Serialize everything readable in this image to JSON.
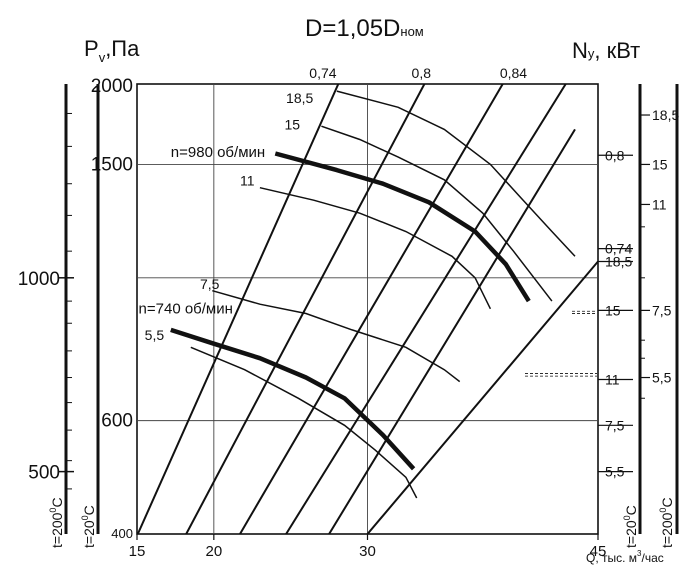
{
  "chart_data": {
    "type": "line",
    "title": {
      "main": "D=1,05D",
      "sub": "ном"
    },
    "ylabel": {
      "main": "P",
      "sub": "v",
      "rest": ",Па"
    },
    "y2label": {
      "main": "N",
      "sub": "y",
      "rest": ",  кВт"
    },
    "xlabel": {
      "main": "Q, тыс. м",
      "sup": "3",
      "rest": "/час"
    },
    "xlim": [
      15,
      45
    ],
    "ylim": [
      400,
      2000
    ],
    "y_scale": "log",
    "x_ticks": [
      "15",
      "20",
      "30",
      "45"
    ],
    "y_ticks": [
      {
        "value": 2000,
        "label": "2000"
      },
      {
        "value": 1500,
        "label": "1500"
      },
      {
        "value": 600,
        "label": "600"
      },
      {
        "value": 400,
        "label": "400"
      }
    ],
    "y_gridlines": [
      1500,
      1000,
      600
    ],
    "x_gridlines": [
      20,
      30
    ],
    "left_outer_scale": {
      "ticks": [
        {
          "value": 1000,
          "label": "1000"
        },
        {
          "value": 500,
          "label": "500"
        }
      ],
      "temperature_label": {
        "main": "t=200",
        "sup": "0",
        "rest": "C"
      }
    },
    "left_inner_scale": {
      "temperature_label": {
        "main": "t=20",
        "sup": "0",
        "rest": "C"
      }
    },
    "right_inner_scale": {
      "ticks": [
        {
          "value": 1550,
          "label": "0,8"
        },
        {
          "value": 1110,
          "label": "0,74"
        },
        {
          "value": 1060,
          "label": "18,5"
        },
        {
          "value": 890,
          "label": "15"
        },
        {
          "value": 695,
          "label": "11"
        },
        {
          "value": 590,
          "label": "7,5"
        },
        {
          "value": 500,
          "label": "5,5"
        }
      ],
      "temperature_label": {
        "main": "t=20",
        "sup": "0",
        "rest": "C"
      }
    },
    "right_outer_scale": {
      "ticks": [
        {
          "value": 1790,
          "label": "18,5"
        },
        {
          "value": 1500,
          "label": "15"
        },
        {
          "value": 1300,
          "label": "11"
        },
        {
          "value": 890,
          "label": "7,5"
        },
        {
          "value": 700,
          "label": "5,5"
        }
      ],
      "temperature_label": {
        "main": "t=200",
        "sup": "0",
        "rest": "C"
      }
    },
    "efficiency_labels": [
      {
        "label": "0,74",
        "x": 27.1
      },
      {
        "label": "0,8",
        "x": 33.5
      },
      {
        "label": "0,84",
        "x": 39.5
      }
    ],
    "series": [
      {
        "name": "n=980 об/мин",
        "label_x": 17.2,
        "label_y": 1540,
        "width": "bold",
        "points": [
          [
            24.0,
            1560
          ],
          [
            28.0,
            1470
          ],
          [
            31.0,
            1400
          ],
          [
            34.0,
            1310
          ],
          [
            37.0,
            1180
          ],
          [
            39.0,
            1050
          ],
          [
            40.5,
            920
          ]
        ]
      },
      {
        "name": "n=740 об/мин",
        "label_x": 15.1,
        "label_y": 880,
        "width": "bold",
        "points": [
          [
            17.2,
            830
          ],
          [
            20.0,
            790
          ],
          [
            23.0,
            750
          ],
          [
            26.0,
            700
          ],
          [
            28.5,
            650
          ],
          [
            31.0,
            570
          ],
          [
            33.0,
            505
          ]
        ]
      }
    ],
    "guide_lines": [
      {
        "points": [
          [
            15.05,
            400
          ],
          [
            28.1,
            2000
          ]
        ]
      },
      {
        "points": [
          [
            18.2,
            400
          ],
          [
            33.7,
            2000
          ]
        ]
      },
      {
        "points": [
          [
            21.7,
            400
          ],
          [
            38.8,
            2000
          ]
        ]
      },
      {
        "points": [
          [
            24.7,
            400
          ],
          [
            42.9,
            2000
          ]
        ]
      },
      {
        "points": [
          [
            27.5,
            400
          ],
          [
            43.5,
            1700
          ]
        ]
      },
      {
        "points": [
          [
            30.0,
            400
          ],
          [
            45.0,
            1060
          ]
        ]
      }
    ],
    "power_lines": [
      {
        "label": "18,5",
        "label_x": 24.7,
        "label_y": 1870,
        "points": [
          [
            28.0,
            1950
          ],
          [
            32.0,
            1840
          ],
          [
            35.0,
            1700
          ],
          [
            38.0,
            1500
          ],
          [
            40.0,
            1330
          ],
          [
            42.0,
            1180
          ],
          [
            43.5,
            1080
          ]
        ]
      },
      {
        "label": "15",
        "label_x": 24.6,
        "label_y": 1700,
        "points": [
          [
            27.0,
            1720
          ],
          [
            29.5,
            1640
          ],
          [
            32.0,
            1540
          ],
          [
            35.0,
            1420
          ],
          [
            37.5,
            1260
          ],
          [
            39.5,
            1100
          ],
          [
            42.0,
            920
          ]
        ]
      },
      {
        "label": "11",
        "label_x": 21.7,
        "label_y": 1390,
        "points": [
          [
            23.0,
            1380
          ],
          [
            26.5,
            1320
          ],
          [
            29.5,
            1260
          ],
          [
            32.5,
            1180
          ],
          [
            35.5,
            1080
          ],
          [
            37.0,
            1000
          ],
          [
            38.0,
            895
          ]
        ]
      },
      {
        "label": "7,5",
        "label_x": 19.1,
        "label_y": 960,
        "points": [
          [
            19.9,
            955
          ],
          [
            23.0,
            910
          ],
          [
            26.0,
            880
          ],
          [
            29.0,
            830
          ],
          [
            32.5,
            780
          ],
          [
            35.0,
            720
          ],
          [
            36.0,
            690
          ]
        ]
      },
      {
        "label": "5,5",
        "label_x": 15.5,
        "label_y": 800,
        "points": [
          [
            18.5,
            780
          ],
          [
            22.0,
            720
          ],
          [
            25.5,
            650
          ],
          [
            28.5,
            590
          ],
          [
            30.5,
            540
          ],
          [
            32.5,
            490
          ],
          [
            33.2,
            455
          ]
        ]
      }
    ]
  }
}
